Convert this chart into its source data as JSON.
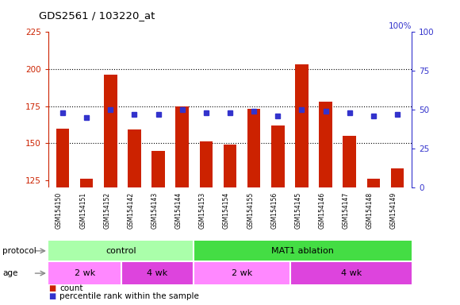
{
  "title": "GDS2561 / 103220_at",
  "samples": [
    "GSM154150",
    "GSM154151",
    "GSM154152",
    "GSM154142",
    "GSM154143",
    "GSM154144",
    "GSM154153",
    "GSM154154",
    "GSM154155",
    "GSM154156",
    "GSM154145",
    "GSM154146",
    "GSM154147",
    "GSM154148",
    "GSM154149"
  ],
  "counts": [
    160,
    126,
    196,
    159,
    145,
    175,
    151,
    149,
    173,
    162,
    203,
    178,
    155,
    126,
    133
  ],
  "percentile_ranks": [
    48,
    45,
    50,
    47,
    47,
    50,
    48,
    48,
    49,
    46,
    50,
    49,
    48,
    46,
    47
  ],
  "ylim_left": [
    120,
    225
  ],
  "ylim_right": [
    0,
    100
  ],
  "yticks_left": [
    125,
    150,
    175,
    200,
    225
  ],
  "yticks_right": [
    0,
    25,
    50,
    75,
    100
  ],
  "bar_color": "#cc2200",
  "dot_color": "#3333cc",
  "grid_color": "#000000",
  "label_bg_color": "#c8c8c8",
  "chart_bg_color": "#ffffff",
  "protocol_groups": [
    {
      "label": "control",
      "start": 0,
      "end": 6,
      "color": "#aaffaa"
    },
    {
      "label": "MAT1 ablation",
      "start": 6,
      "end": 15,
      "color": "#44dd44"
    }
  ],
  "age_groups": [
    {
      "label": "2 wk",
      "start": 0,
      "end": 3,
      "color": "#ff88ff"
    },
    {
      "label": "4 wk",
      "start": 3,
      "end": 6,
      "color": "#dd44dd"
    },
    {
      "label": "2 wk",
      "start": 6,
      "end": 10,
      "color": "#ff88ff"
    },
    {
      "label": "4 wk",
      "start": 10,
      "end": 15,
      "color": "#dd44dd"
    }
  ],
  "legend_count_color": "#cc2200",
  "legend_dot_color": "#3333cc"
}
